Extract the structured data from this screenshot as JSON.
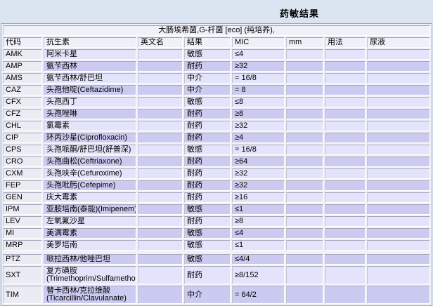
{
  "page": {
    "title": "药敏结果"
  },
  "report": {
    "specimen_header": "大肠埃希菌,G-杆菌 [eco] (纯培养),",
    "columns": [
      "代码",
      "抗生素",
      "英文名",
      "结果",
      "MIC",
      "mm",
      "用法",
      "尿液"
    ],
    "colors": {
      "page_bg": "#dbe4f1",
      "header_bg": "#eff0f8",
      "row_light": "#e3e3fb",
      "row_dark": "#cbcbf1",
      "code_column_bg": "#ebebf3"
    },
    "result_legend": {
      "sensitive": "敏感",
      "resistant": "耐药",
      "intermediate": "中介"
    },
    "rows": [
      {
        "code": "AMK",
        "name": "阿米卡星",
        "name2": "",
        "name_en": "",
        "result": "敏感",
        "mic": "≤4",
        "mm": "",
        "usage": "",
        "stock": "",
        "section": 1
      },
      {
        "code": "AMP",
        "name": "氨苄西林",
        "name2": "",
        "name_en": "",
        "result": "耐药",
        "mic": "≥32",
        "mm": "",
        "usage": "",
        "stock": "",
        "section": 1
      },
      {
        "code": "AMS",
        "name": "氨苄西林/舒巴坦",
        "name2": "",
        "name_en": "",
        "result": "中介",
        "mic": "= 16/8",
        "mm": "",
        "usage": "",
        "stock": "",
        "section": 1
      },
      {
        "code": "CAZ",
        "name": "头孢他啶(Ceftazidime)",
        "name2": "",
        "name_en": "",
        "result": "中介",
        "mic": "= 8",
        "mm": "",
        "usage": "",
        "stock": "",
        "section": 1
      },
      {
        "code": "CFX",
        "name": "头孢西丁",
        "name2": "",
        "name_en": "",
        "result": "敏感",
        "mic": "≤8",
        "mm": "",
        "usage": "",
        "stock": "",
        "section": 1
      },
      {
        "code": "CFZ",
        "name": "头孢唑啉",
        "name2": "",
        "name_en": "",
        "result": "耐药",
        "mic": "≥8",
        "mm": "",
        "usage": "",
        "stock": "",
        "section": 1
      },
      {
        "code": "CHL",
        "name": "氯霉素",
        "name2": "",
        "name_en": "",
        "result": "耐药",
        "mic": "≥32",
        "mm": "",
        "usage": "",
        "stock": "",
        "section": 1
      },
      {
        "code": "CIP",
        "name": "环丙沙星(Ciprofloxacin)",
        "name2": "",
        "name_en": "",
        "result": "耐药",
        "mic": "≥4",
        "mm": "",
        "usage": "",
        "stock": "",
        "section": 1
      },
      {
        "code": "CPS",
        "name": "头孢哌酮/舒巴坦(舒普深)",
        "name2": "",
        "name_en": "",
        "result": "敏感",
        "mic": "= 16/8",
        "mm": "",
        "usage": "",
        "stock": "",
        "section": 1
      },
      {
        "code": "CRO",
        "name": "头孢曲松(Ceftriaxone)",
        "name2": "",
        "name_en": "",
        "result": "耐药",
        "mic": "≥64",
        "mm": "",
        "usage": "",
        "stock": "",
        "section": 1
      },
      {
        "code": "CXM",
        "name": "头孢呋辛(Cefuroxime)",
        "name2": "",
        "name_en": "",
        "result": "耐药",
        "mic": "≥32",
        "mm": "",
        "usage": "",
        "stock": "",
        "section": 1
      },
      {
        "code": "FEP",
        "name": "头孢吡肟(Cefepime)",
        "name2": "",
        "name_en": "",
        "result": "耐药",
        "mic": "≥32",
        "mm": "",
        "usage": "",
        "stock": "",
        "section": 1
      },
      {
        "code": "GEN",
        "name": "庆大霉素",
        "name2": "",
        "name_en": "",
        "result": "耐药",
        "mic": "≥16",
        "mm": "",
        "usage": "",
        "stock": "",
        "section": 1
      },
      {
        "code": "IPM",
        "name": "亚胺培南(泰能)(Imipenem)",
        "name2": "",
        "name_en": "",
        "result": "敏感",
        "mic": "≤1",
        "mm": "",
        "usage": "",
        "stock": "",
        "section": 1
      },
      {
        "code": "LEV",
        "name": "左氧氟沙星",
        "name2": "",
        "name_en": "",
        "result": "耐药",
        "mic": "≥8",
        "mm": "",
        "usage": "",
        "stock": "",
        "section": 1
      },
      {
        "code": "MI",
        "name": "美满霉素",
        "name2": "",
        "name_en": "",
        "result": "敏感",
        "mic": "≤4",
        "mm": "",
        "usage": "",
        "stock": "",
        "section": 1
      },
      {
        "code": "MRP",
        "name": "美罗培南",
        "name2": "",
        "name_en": "",
        "result": "敏感",
        "mic": "≤1",
        "mm": "",
        "usage": "",
        "stock": "",
        "section": 1
      },
      {
        "code": "PTZ",
        "name": "哌拉西林/他唑巴坦",
        "name2": "",
        "name_en": "",
        "result": "敏感",
        "mic": "≤4/4",
        "mm": "",
        "usage": "",
        "stock": "",
        "section": 2
      },
      {
        "code": "SXT",
        "name": "复方磺胺",
        "name2": "(Trimethoprim/Sulfamethoxazole)",
        "name_en": "",
        "result": "耐药",
        "mic": "≥8/152",
        "mm": "",
        "usage": "",
        "stock": "",
        "section": 2
      },
      {
        "code": "TIM",
        "name": "替卡西林/克拉维酸",
        "name2": "(Ticarcillin/Clavulanate)",
        "name_en": "",
        "result": "中介",
        "mic": "= 64/2",
        "mm": "",
        "usage": "",
        "stock": "",
        "section": 2
      }
    ]
  }
}
